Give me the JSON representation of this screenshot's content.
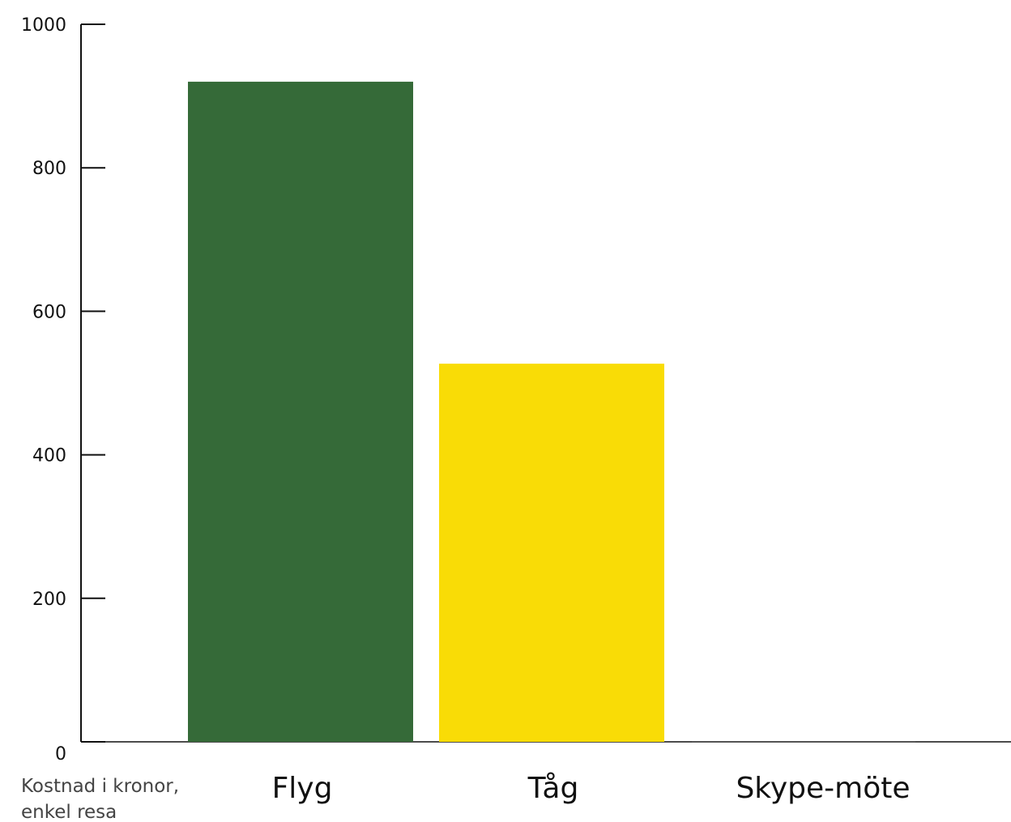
{
  "chart_data": {
    "type": "bar",
    "categories": [
      "Flyg",
      "Tåg",
      "Skype-möte"
    ],
    "values": [
      920,
      527,
      0
    ],
    "colors": [
      "#356a38",
      "#f9dc06",
      "#444444"
    ],
    "ylim": [
      0,
      1000
    ],
    "yticks": [
      0,
      200,
      400,
      600,
      800,
      1000
    ],
    "ylabel_lines": [
      "Kostnad i kronor,",
      "enkel resa"
    ],
    "grid": false,
    "legend": "none"
  }
}
